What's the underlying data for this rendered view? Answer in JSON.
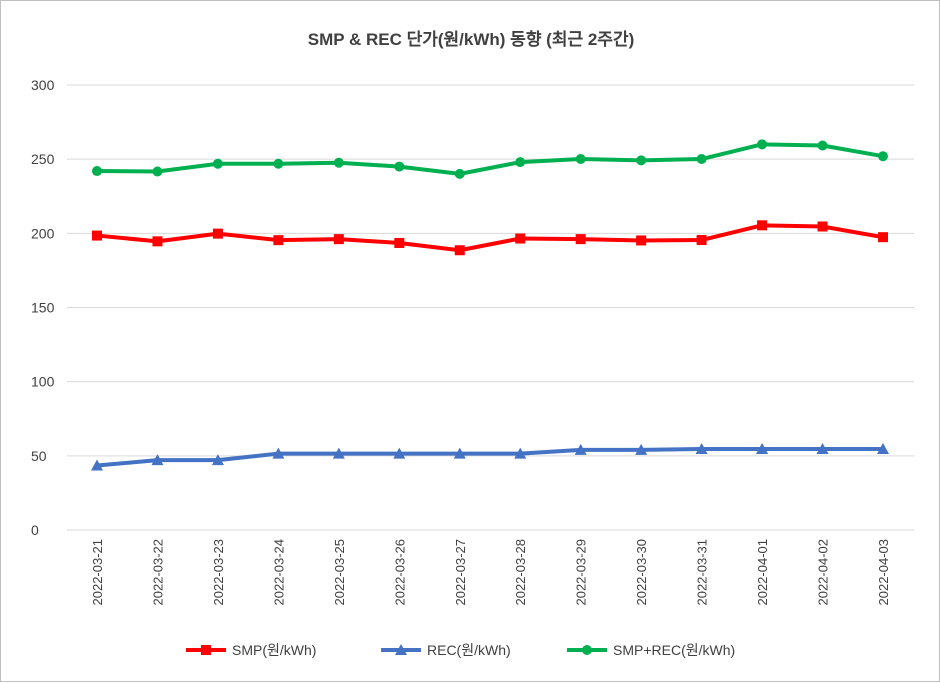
{
  "chart_data": {
    "type": "line",
    "title": "SMP & REC 단가(원/kWh) 동향 (최근 2주간)",
    "xlabel": "",
    "ylabel": "",
    "ylim": [
      0,
      300
    ],
    "yticks": [
      0,
      50,
      100,
      150,
      200,
      250,
      300
    ],
    "grid": true,
    "legend_position": "bottom",
    "categories": [
      "2022-03-21",
      "2022-03-22",
      "2022-03-23",
      "2022-03-24",
      "2022-03-25",
      "2022-03-26",
      "2022-03-27",
      "2022-03-28",
      "2022-03-29",
      "2022-03-30",
      "2022-03-31",
      "2022-04-01",
      "2022-04-02",
      "2022-04-03"
    ],
    "series": [
      {
        "name": "SMP(원/kWh)",
        "color": "#ff0000",
        "marker": "square",
        "values": [
          198.5,
          194.6,
          199.8,
          195.4,
          196.1,
          193.5,
          188.6,
          196.5,
          196.1,
          195.2,
          195.5,
          205.4,
          204.6,
          197.4
        ]
      },
      {
        "name": "REC(원/kWh)",
        "color": "#4472c4",
        "marker": "triangle",
        "values": [
          43.5,
          47.1,
          47.1,
          51.5,
          51.5,
          51.5,
          51.5,
          51.5,
          54.0,
          54.0,
          54.6,
          54.6,
          54.6,
          54.6
        ]
      },
      {
        "name": "SMP+REC(원/kWh)",
        "color": "#00b050",
        "marker": "circle",
        "values": [
          242.0,
          241.7,
          246.9,
          246.9,
          247.6,
          245.0,
          240.1,
          248.0,
          250.1,
          249.2,
          250.1,
          260.0,
          259.2,
          252.0
        ]
      }
    ]
  }
}
